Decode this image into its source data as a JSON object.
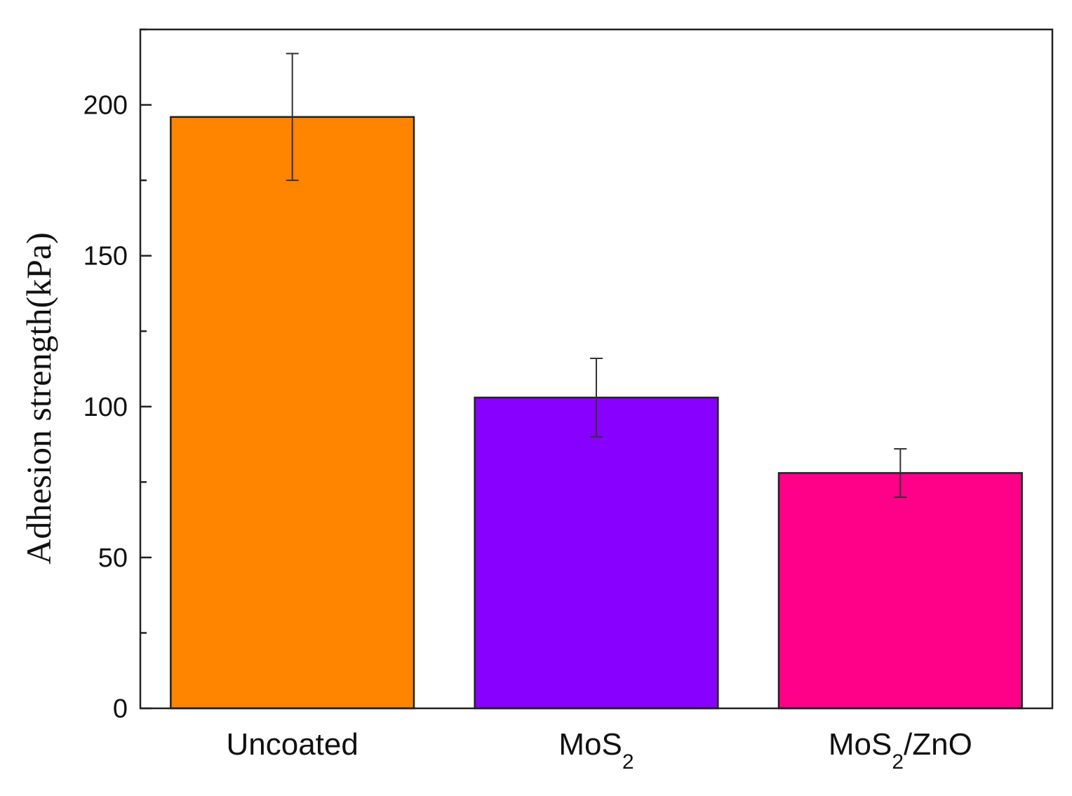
{
  "chart_data": {
    "type": "bar",
    "title": "",
    "xlabel": "",
    "ylabel": "Adhesion strength(kPa)",
    "ylim": [
      0,
      225
    ],
    "yticks": [
      0,
      50,
      100,
      150,
      200
    ],
    "y_minor_step": 25,
    "grid": false,
    "legend": "none",
    "categories": [
      {
        "main": "Uncoated",
        "sub": "",
        "after": ""
      },
      {
        "main": "MoS",
        "sub": "2",
        "after": ""
      },
      {
        "main": "MoS",
        "sub": "2",
        "after": "/ZnO"
      }
    ],
    "values": [
      196,
      103,
      78
    ],
    "errors": [
      21,
      13,
      8
    ],
    "colors": [
      "#ff8400",
      "#8800ff",
      "#ff0088"
    ]
  }
}
